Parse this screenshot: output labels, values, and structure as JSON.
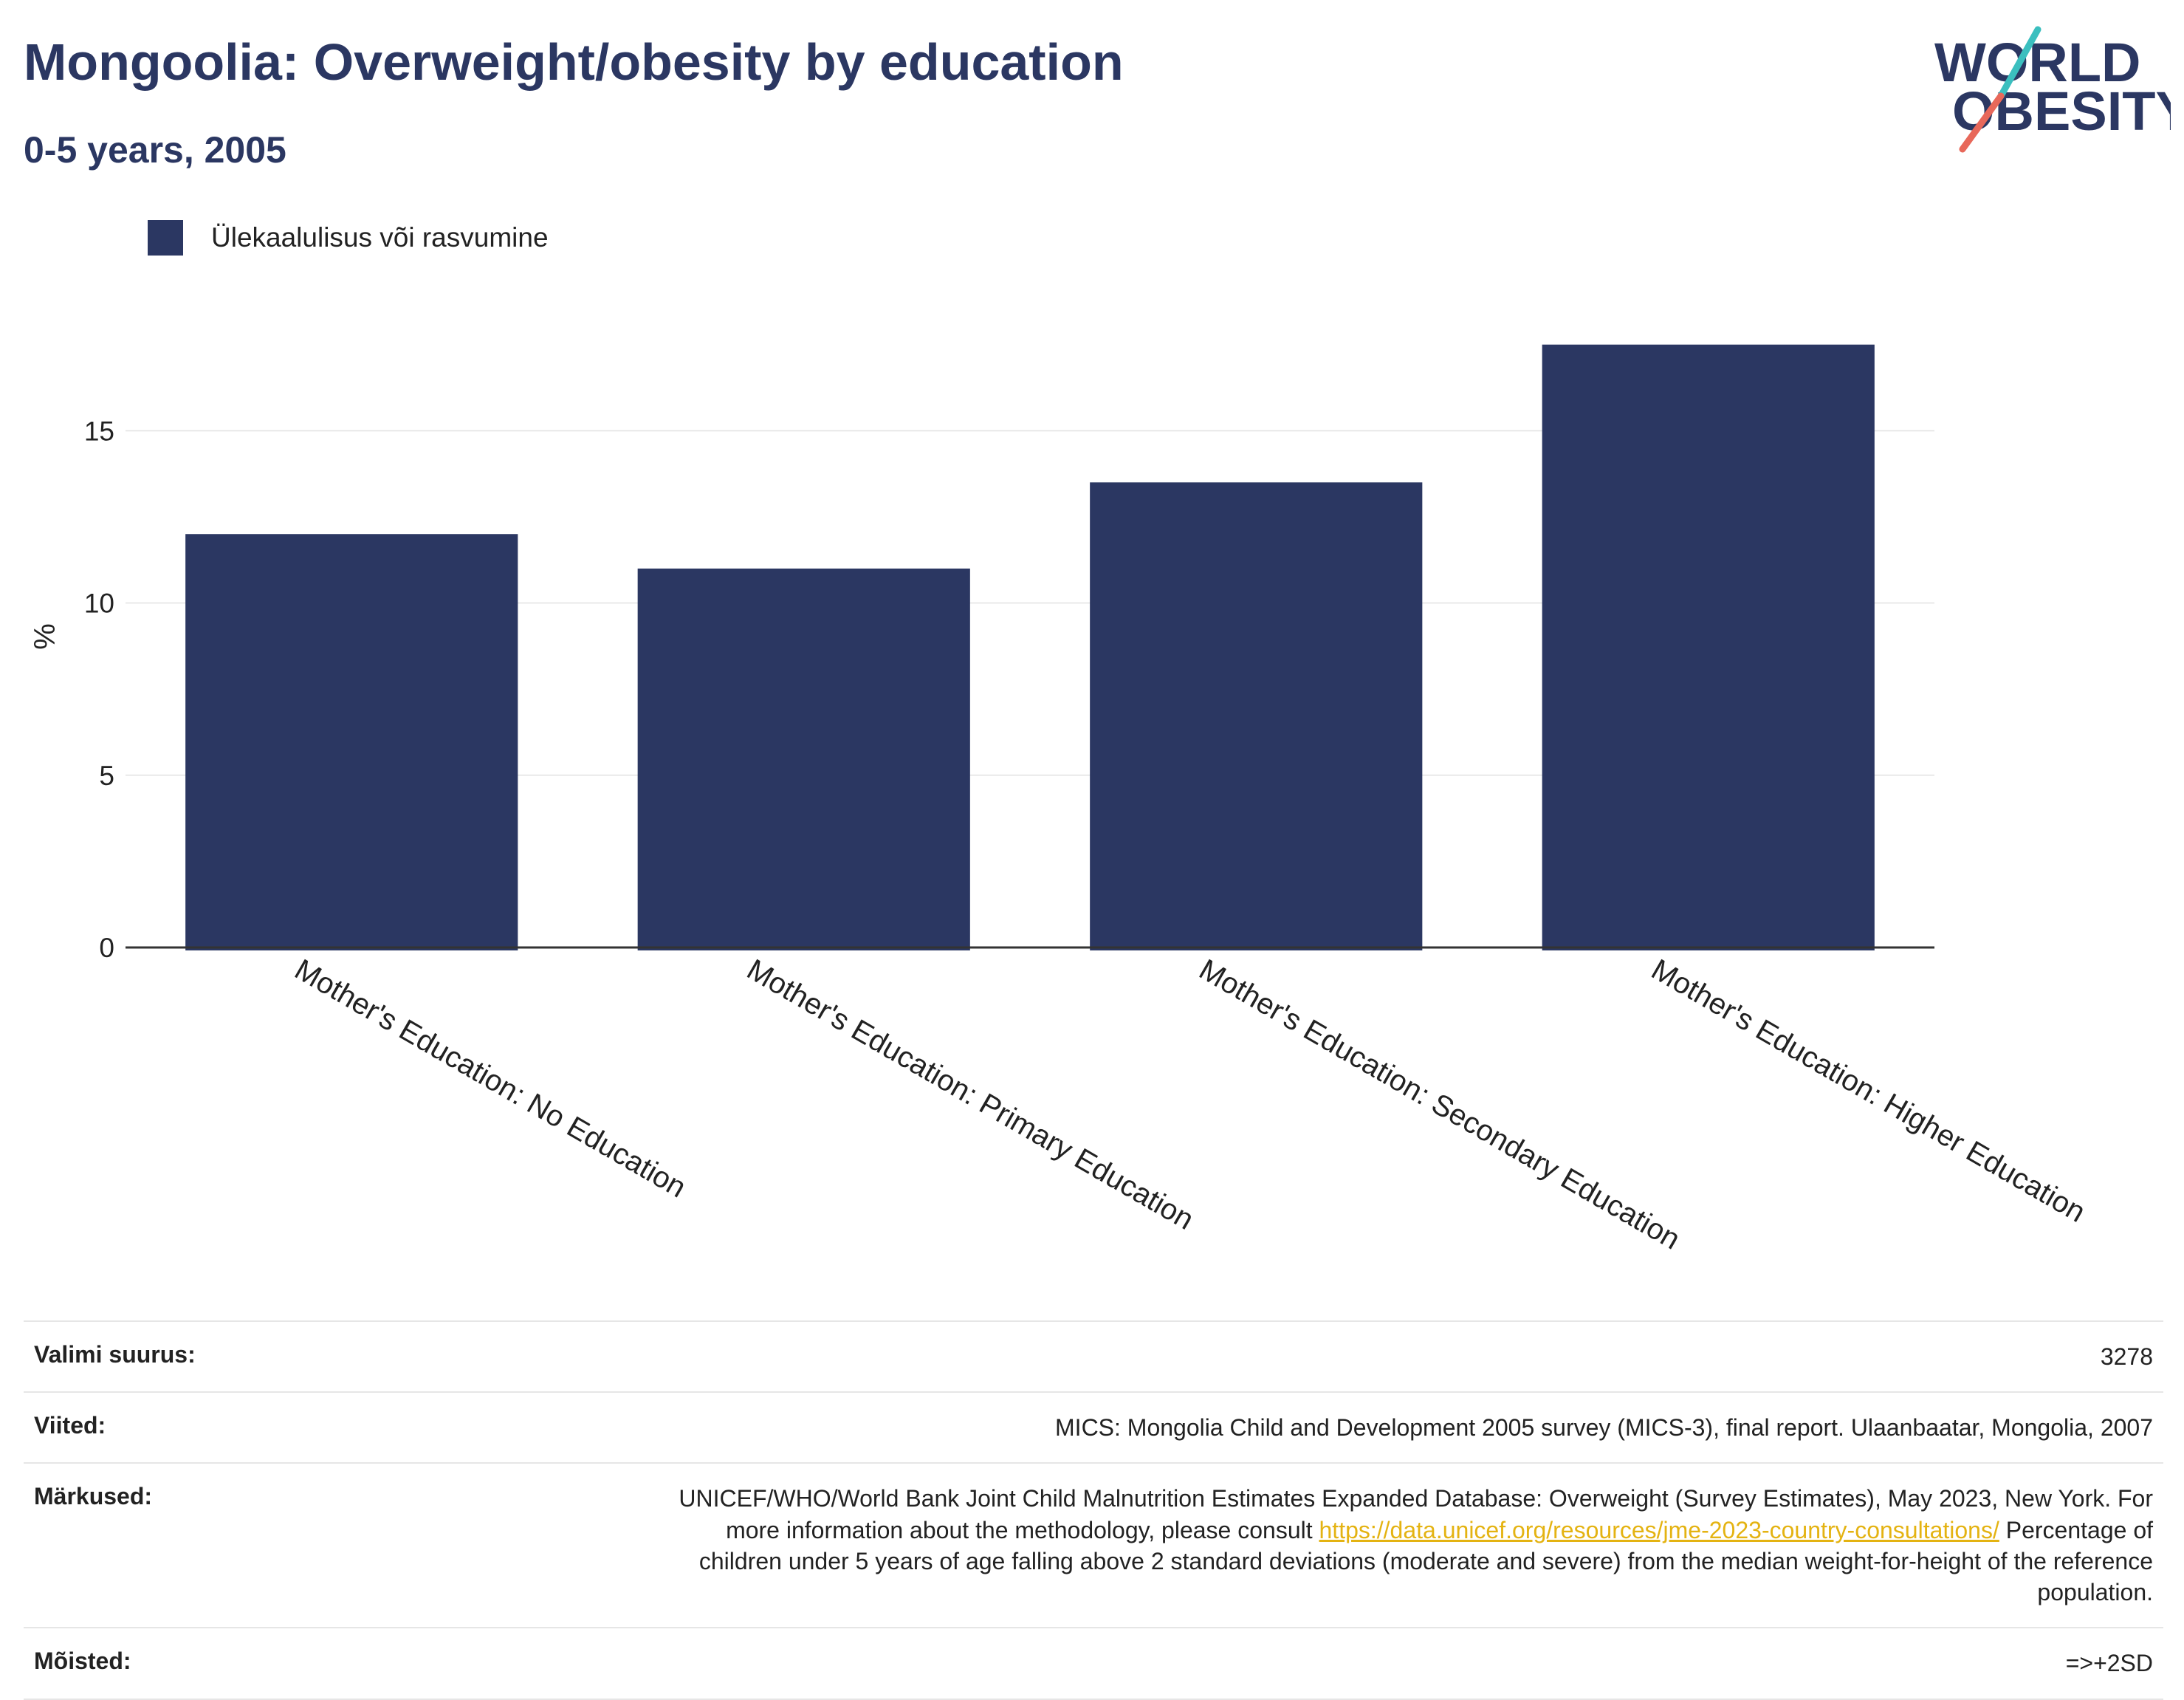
{
  "header": {
    "title": "Mongoolia: Overweight/obesity by education",
    "subtitle": "0-5 years, 2005"
  },
  "logo": {
    "line1": "WORLD",
    "line2": "OBESITY"
  },
  "colors": {
    "bar": "#2b3762",
    "title": "#2b3762",
    "link": "#e4b312",
    "logo_teal": "#3bbfbf",
    "logo_red": "#e8685a"
  },
  "chart_data": {
    "type": "bar",
    "categories": [
      "Mother's Education: No Education",
      "Mother's Education: Primary Education",
      "Mother's Education: Secondary Education",
      "Mother's Education: Higher Education"
    ],
    "series": [
      {
        "name": "Ülekaalulisus või rasvumine",
        "values": [
          12.0,
          11.0,
          13.5,
          17.5
        ]
      }
    ],
    "ylabel": "%",
    "ylim": [
      0,
      18.5
    ],
    "yticks": [
      0,
      5,
      10,
      15
    ],
    "grid": true,
    "legend": "top-left"
  },
  "info": {
    "sample_label": "Valimi suurus:",
    "sample_value": "3278",
    "refs_label": "Viited:",
    "refs_value": "MICS: Mongolia Child and Development 2005 survey (MICS-3), final report. Ulaanbaatar, Mongolia, 2007",
    "notes_label": "Märkused:",
    "notes_text1": "UNICEF/WHO/World Bank Joint Child Malnutrition Estimates Expanded Database: Overweight (Survey Estimates), May 2023, New York. For more information about the methodology, please consult",
    "notes_link": "https://data.unicef.org/resources/jme-2023-country-consultations/",
    "notes_text2": "Percentage of children under 5 years of age falling above 2 standard deviations (moderate and severe) from the median weight-for-height of the reference population.",
    "def_label": "Mõisted:",
    "def_value": "=>+2SD"
  }
}
